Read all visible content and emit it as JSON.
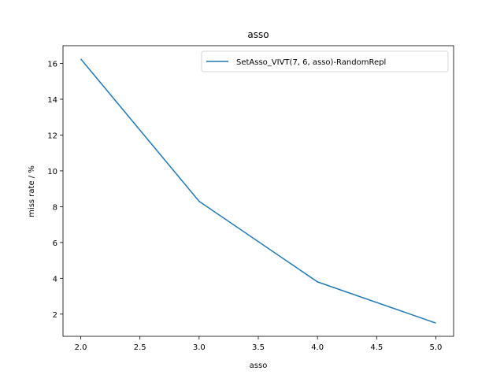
{
  "chart_data": {
    "type": "line",
    "title": "asso",
    "xlabel": "asso",
    "ylabel": "miss rate / %",
    "x": [
      2.0,
      3.0,
      4.0,
      5.0
    ],
    "series": [
      {
        "name": "SetAsso_VIVT(7, 6, asso)-RandomRepl",
        "values": [
          16.25,
          8.3,
          3.8,
          1.5
        ],
        "color": "#1f77b4"
      }
    ],
    "xlim": [
      1.85,
      5.15
    ],
    "ylim": [
      0.76,
      16.99
    ],
    "xticks": [
      "2.0",
      "2.5",
      "3.0",
      "3.5",
      "4.0",
      "4.5",
      "5.0"
    ],
    "yticks": [
      "2",
      "4",
      "6",
      "8",
      "10",
      "12",
      "14",
      "16"
    ],
    "grid": false,
    "legend_position": "top-right"
  }
}
